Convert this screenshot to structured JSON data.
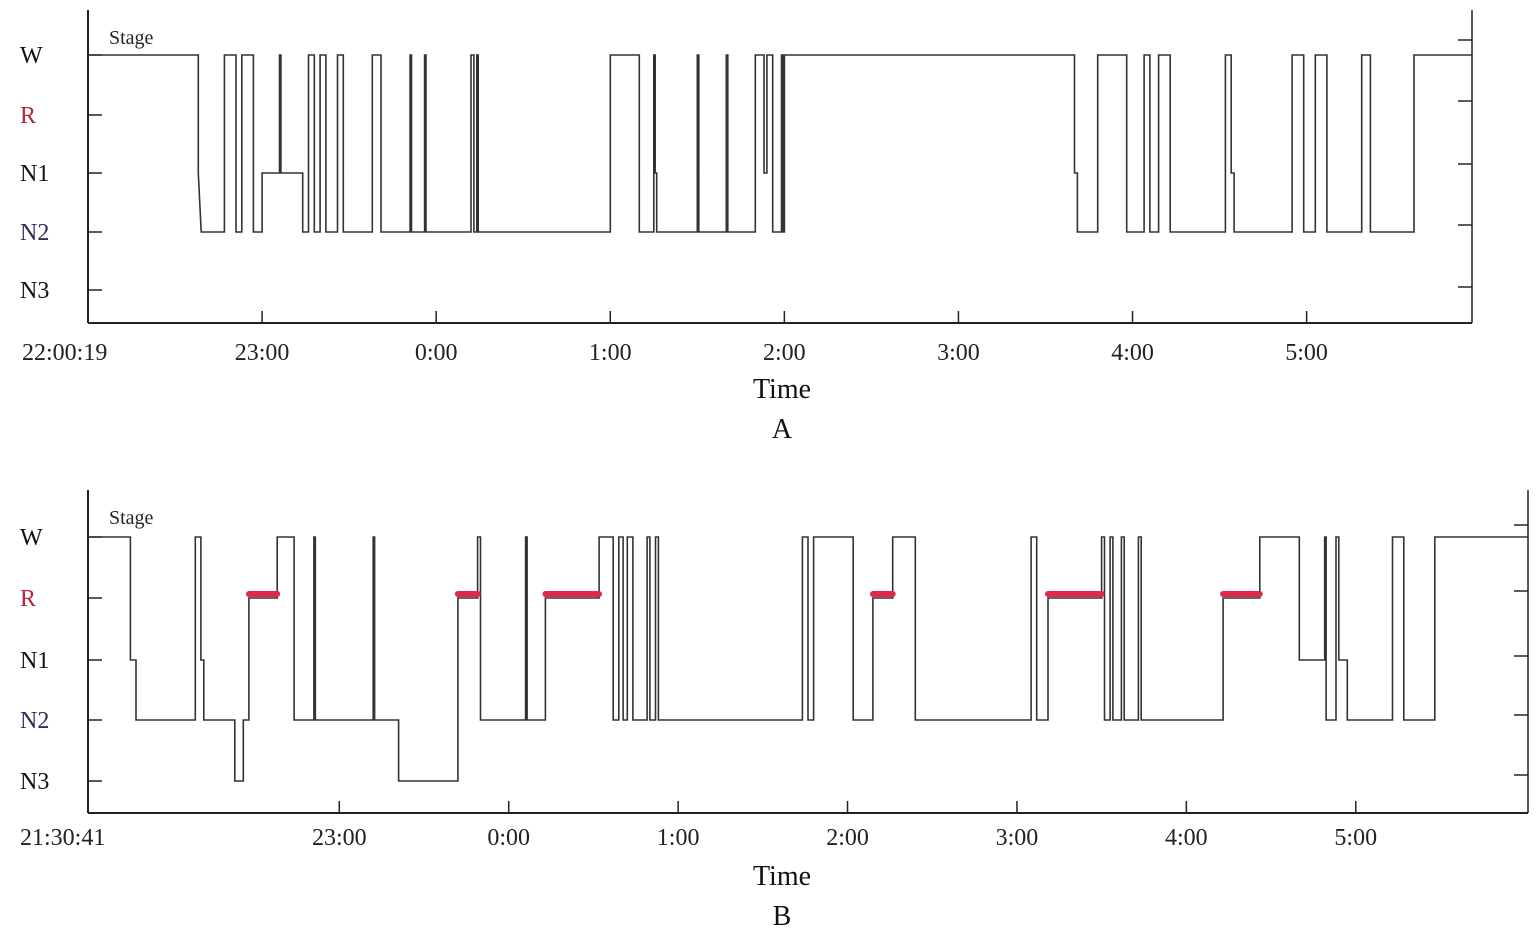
{
  "colors": {
    "hypnogram_line": "#333333",
    "rem_bar": "#e0284a",
    "rem_label": "#b5283b",
    "n2_label": "#2e2e5c",
    "default_label": "#111111",
    "axis": "#222222"
  },
  "chart_data": [
    {
      "type": "line",
      "panel_label": "A",
      "stage_title": "Stage",
      "xlabel": "Time",
      "y_categories": [
        "W",
        "R",
        "N1",
        "N2",
        "N3"
      ],
      "x_start_label": "22:00:19",
      "x_tick_labels": [
        "23:00",
        "0:00",
        "1:00",
        "2:00",
        "3:00",
        "4:00",
        "5:00"
      ],
      "x_tick_values": [
        60,
        120,
        180,
        240,
        300,
        360,
        420
      ],
      "xlim": [
        0,
        477
      ],
      "x_unit": "minutes since 22:00:19",
      "hypnogram": [
        [
          0,
          "W"
        ],
        [
          38,
          "W"
        ],
        [
          38,
          "N1"
        ],
        [
          39,
          "N2"
        ],
        [
          47,
          "N2"
        ],
        [
          47,
          "W"
        ],
        [
          51,
          "W"
        ],
        [
          51,
          "N2"
        ],
        [
          53,
          "N2"
        ],
        [
          53,
          "W"
        ],
        [
          57,
          "W"
        ],
        [
          57,
          "N2"
        ],
        [
          60,
          "N2"
        ],
        [
          60,
          "N1"
        ],
        [
          66,
          "N1"
        ],
        [
          66,
          "W"
        ],
        [
          66.5,
          "W"
        ],
        [
          66.5,
          "N1"
        ],
        [
          74,
          "N1"
        ],
        [
          74,
          "N2"
        ],
        [
          76,
          "N2"
        ],
        [
          76,
          "W"
        ],
        [
          78,
          "W"
        ],
        [
          78,
          "N2"
        ],
        [
          80,
          "N2"
        ],
        [
          80,
          "W"
        ],
        [
          82,
          "W"
        ],
        [
          82,
          "N2"
        ],
        [
          86,
          "N2"
        ],
        [
          86,
          "W"
        ],
        [
          88,
          "W"
        ],
        [
          88,
          "N2"
        ],
        [
          98,
          "N2"
        ],
        [
          98,
          "W"
        ],
        [
          101,
          "W"
        ],
        [
          101,
          "N2"
        ],
        [
          111,
          "N2"
        ],
        [
          111,
          "W"
        ],
        [
          111.5,
          "W"
        ],
        [
          111.5,
          "N2"
        ],
        [
          116,
          "N2"
        ],
        [
          116,
          "W"
        ],
        [
          116.5,
          "W"
        ],
        [
          116.5,
          "N2"
        ],
        [
          132,
          "N2"
        ],
        [
          132,
          "W"
        ],
        [
          133,
          "W"
        ],
        [
          133,
          "N2"
        ],
        [
          134,
          "N2"
        ],
        [
          134,
          "W"
        ],
        [
          134.5,
          "W"
        ],
        [
          134.5,
          "N2"
        ],
        [
          180,
          "N2"
        ],
        [
          180,
          "W"
        ],
        [
          190,
          "W"
        ],
        [
          190,
          "N2"
        ],
        [
          195,
          "N2"
        ],
        [
          195,
          "W"
        ],
        [
          195.5,
          "W"
        ],
        [
          195.5,
          "N1"
        ],
        [
          196,
          "N1"
        ],
        [
          196,
          "N2"
        ],
        [
          210,
          "N2"
        ],
        [
          210,
          "W"
        ],
        [
          210.5,
          "W"
        ],
        [
          210.5,
          "N2"
        ],
        [
          220,
          "N2"
        ],
        [
          220,
          "W"
        ],
        [
          220.5,
          "W"
        ],
        [
          220.5,
          "N2"
        ],
        [
          230,
          "N2"
        ],
        [
          230,
          "W"
        ],
        [
          233,
          "W"
        ],
        [
          233,
          "N1"
        ],
        [
          234,
          "N1"
        ],
        [
          234,
          "W"
        ],
        [
          236,
          "W"
        ],
        [
          236,
          "N2"
        ],
        [
          239,
          "N2"
        ],
        [
          239,
          "W"
        ],
        [
          239.5,
          "W"
        ],
        [
          239.5,
          "N2"
        ],
        [
          240,
          "N2"
        ],
        [
          240,
          "W"
        ],
        [
          340,
          "W"
        ],
        [
          340,
          "N1"
        ],
        [
          341,
          "N1"
        ],
        [
          341,
          "N2"
        ],
        [
          348,
          "N2"
        ],
        [
          348,
          "W"
        ],
        [
          358,
          "W"
        ],
        [
          358,
          "N2"
        ],
        [
          364,
          "N2"
        ],
        [
          364,
          "W"
        ],
        [
          366,
          "W"
        ],
        [
          366,
          "N2"
        ],
        [
          369,
          "N2"
        ],
        [
          369,
          "W"
        ],
        [
          373,
          "W"
        ],
        [
          373,
          "N2"
        ],
        [
          392,
          "N2"
        ],
        [
          392,
          "W"
        ],
        [
          394,
          "W"
        ],
        [
          394,
          "N1"
        ],
        [
          395,
          "N1"
        ],
        [
          395,
          "N2"
        ],
        [
          415,
          "N2"
        ],
        [
          415,
          "W"
        ],
        [
          419,
          "W"
        ],
        [
          419,
          "N2"
        ],
        [
          423,
          "N2"
        ],
        [
          423,
          "W"
        ],
        [
          427,
          "W"
        ],
        [
          427,
          "N2"
        ],
        [
          439,
          "N2"
        ],
        [
          439,
          "W"
        ],
        [
          442,
          "W"
        ],
        [
          442,
          "N2"
        ],
        [
          457,
          "N2"
        ],
        [
          457,
          "W"
        ],
        [
          477,
          "W"
        ]
      ],
      "rem_periods": []
    },
    {
      "type": "line",
      "panel_label": "B",
      "stage_title": "Stage",
      "xlabel": "Time",
      "y_categories": [
        "W",
        "R",
        "N1",
        "N2",
        "N3"
      ],
      "x_start_label": "21:30:41",
      "x_tick_labels": [
        "23:00",
        "0:00",
        "1:00",
        "2:00",
        "3:00",
        "4:00",
        "5:00"
      ],
      "x_tick_values": [
        89,
        149,
        209,
        269,
        329,
        389,
        449
      ],
      "xlim": [
        0,
        510
      ],
      "x_unit": "minutes since 21:30:41",
      "hypnogram": [
        [
          0,
          "W"
        ],
        [
          15,
          "W"
        ],
        [
          15,
          "N1"
        ],
        [
          17,
          "N1"
        ],
        [
          17,
          "N2"
        ],
        [
          38,
          "N2"
        ],
        [
          38,
          "W"
        ],
        [
          40,
          "W"
        ],
        [
          40,
          "N1"
        ],
        [
          41,
          "N1"
        ],
        [
          41,
          "N2"
        ],
        [
          52,
          "N2"
        ],
        [
          52,
          "N3"
        ],
        [
          55,
          "N3"
        ],
        [
          55,
          "N2"
        ],
        [
          57,
          "N2"
        ],
        [
          57,
          "R"
        ],
        [
          67,
          "R"
        ],
        [
          67,
          "W"
        ],
        [
          73,
          "W"
        ],
        [
          73,
          "N2"
        ],
        [
          80,
          "N2"
        ],
        [
          80,
          "W"
        ],
        [
          80.5,
          "W"
        ],
        [
          80.5,
          "N2"
        ],
        [
          101,
          "N2"
        ],
        [
          101,
          "W"
        ],
        [
          101.5,
          "W"
        ],
        [
          101.5,
          "N2"
        ],
        [
          110,
          "N2"
        ],
        [
          110,
          "N3"
        ],
        [
          131,
          "N3"
        ],
        [
          131,
          "R"
        ],
        [
          138,
          "R"
        ],
        [
          138,
          "W"
        ],
        [
          139,
          "W"
        ],
        [
          139,
          "N2"
        ],
        [
          155,
          "N2"
        ],
        [
          155,
          "W"
        ],
        [
          155.5,
          "W"
        ],
        [
          155.5,
          "N2"
        ],
        [
          162,
          "N2"
        ],
        [
          162,
          "R"
        ],
        [
          181,
          "R"
        ],
        [
          181,
          "W"
        ],
        [
          186,
          "W"
        ],
        [
          186,
          "N2"
        ],
        [
          188,
          "N2"
        ],
        [
          188,
          "W"
        ],
        [
          189.5,
          "W"
        ],
        [
          189.5,
          "N2"
        ],
        [
          191,
          "N2"
        ],
        [
          191,
          "W"
        ],
        [
          193,
          "W"
        ],
        [
          193,
          "N2"
        ],
        [
          198,
          "N2"
        ],
        [
          198,
          "W"
        ],
        [
          199,
          "W"
        ],
        [
          199,
          "N2"
        ],
        [
          201,
          "N2"
        ],
        [
          201,
          "W"
        ],
        [
          202,
          "W"
        ],
        [
          202,
          "N2"
        ],
        [
          253,
          "N2"
        ],
        [
          253,
          "W"
        ],
        [
          255,
          "W"
        ],
        [
          255,
          "N2"
        ],
        [
          257,
          "N2"
        ],
        [
          257,
          "W"
        ],
        [
          271,
          "W"
        ],
        [
          271,
          "N2"
        ],
        [
          278,
          "N2"
        ],
        [
          278,
          "R"
        ],
        [
          285,
          "R"
        ],
        [
          285,
          "W"
        ],
        [
          293,
          "W"
        ],
        [
          293,
          "N2"
        ],
        [
          334,
          "N2"
        ],
        [
          334,
          "W"
        ],
        [
          336,
          "W"
        ],
        [
          336,
          "N2"
        ],
        [
          340,
          "N2"
        ],
        [
          340,
          "R"
        ],
        [
          359,
          "R"
        ],
        [
          359,
          "W"
        ],
        [
          360,
          "W"
        ],
        [
          360,
          "N2"
        ],
        [
          362,
          "N2"
        ],
        [
          362,
          "W"
        ],
        [
          363,
          "W"
        ],
        [
          363,
          "N2"
        ],
        [
          366,
          "N2"
        ],
        [
          366,
          "W"
        ],
        [
          367,
          "W"
        ],
        [
          367,
          "N2"
        ],
        [
          372,
          "N2"
        ],
        [
          372,
          "W"
        ],
        [
          373,
          "W"
        ],
        [
          373,
          "N2"
        ],
        [
          402,
          "N2"
        ],
        [
          402,
          "R"
        ],
        [
          415,
          "R"
        ],
        [
          415,
          "W"
        ],
        [
          429,
          "W"
        ],
        [
          429,
          "N1"
        ],
        [
          438,
          "N1"
        ],
        [
          438,
          "W"
        ],
        [
          438.5,
          "W"
        ],
        [
          438.5,
          "N2"
        ],
        [
          442,
          "N2"
        ],
        [
          442,
          "W"
        ],
        [
          443,
          "W"
        ],
        [
          443,
          "N1"
        ],
        [
          446,
          "N1"
        ],
        [
          446,
          "N2"
        ],
        [
          462,
          "N2"
        ],
        [
          462,
          "W"
        ],
        [
          466,
          "W"
        ],
        [
          466,
          "N2"
        ],
        [
          477,
          "N2"
        ],
        [
          477,
          "W"
        ],
        [
          510,
          "W"
        ]
      ],
      "rem_periods": [
        [
          57,
          67
        ],
        [
          131,
          138
        ],
        [
          162,
          181
        ],
        [
          278,
          285
        ],
        [
          340,
          359
        ],
        [
          402,
          415
        ]
      ]
    }
  ]
}
